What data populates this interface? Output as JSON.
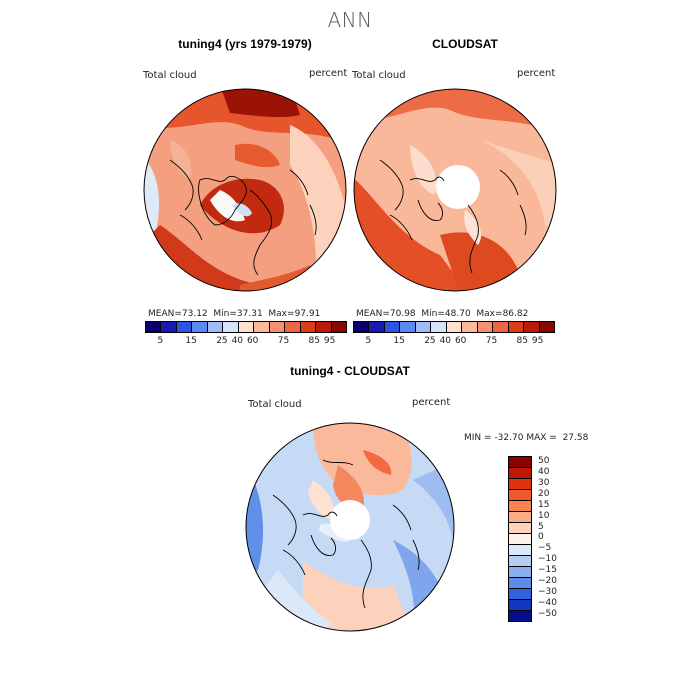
{
  "page": {
    "title": "ANN"
  },
  "panels": {
    "left": {
      "title": "tuning4 (yrs 1979-1979)",
      "variable": "Total cloud",
      "units": "percent",
      "stats": {
        "mean_label": "MEAN=",
        "mean": "73.12",
        "min_label": "Min=",
        "min": "37.31",
        "max_label": "Max=",
        "max": "97.91"
      }
    },
    "right": {
      "title": "CLOUDSAT",
      "variable": "Total cloud",
      "units": "percent",
      "stats": {
        "mean_label": "MEAN=",
        "mean": "70.98",
        "min_label": "Min=",
        "min": "48.70",
        "max_label": "Max=",
        "max": "86.82"
      }
    },
    "diff": {
      "title": "tuning4 - CLOUDSAT",
      "variable": "Total cloud",
      "units": "percent",
      "stats": {
        "min_label": "MIN =",
        "min": "-32.70",
        "max_label": "MAX =",
        "max": "27.58"
      }
    }
  },
  "colorbars": {
    "absolute": {
      "colors": [
        "#08006e",
        "#1a1ab3",
        "#2e55e6",
        "#5b8bf0",
        "#9ebcf7",
        "#d7e5f9",
        "#fde0cf",
        "#fbb99a",
        "#f7906e",
        "#ef6640",
        "#dd3b1a",
        "#b81c08",
        "#8a0804"
      ],
      "ticks": [
        "5",
        "15",
        "25",
        "40",
        "60",
        "75",
        "85",
        "95"
      ]
    },
    "difference": {
      "colors": [
        "#8b0000",
        "#c01806",
        "#e0320f",
        "#f05a2b",
        "#f8824f",
        "#fbab86",
        "#fdd3bd",
        "#fdf1ea",
        "#dbe9f8",
        "#b4cff3",
        "#88b0ee",
        "#5c8ee8",
        "#2f64dc",
        "#1436c0",
        "#050f8a"
      ],
      "ticks": [
        "50",
        "40",
        "30",
        "20",
        "15",
        "10",
        "5",
        "0",
        "−5",
        "−10",
        "−15",
        "−20",
        "−30",
        "−40",
        "−50"
      ]
    }
  }
}
